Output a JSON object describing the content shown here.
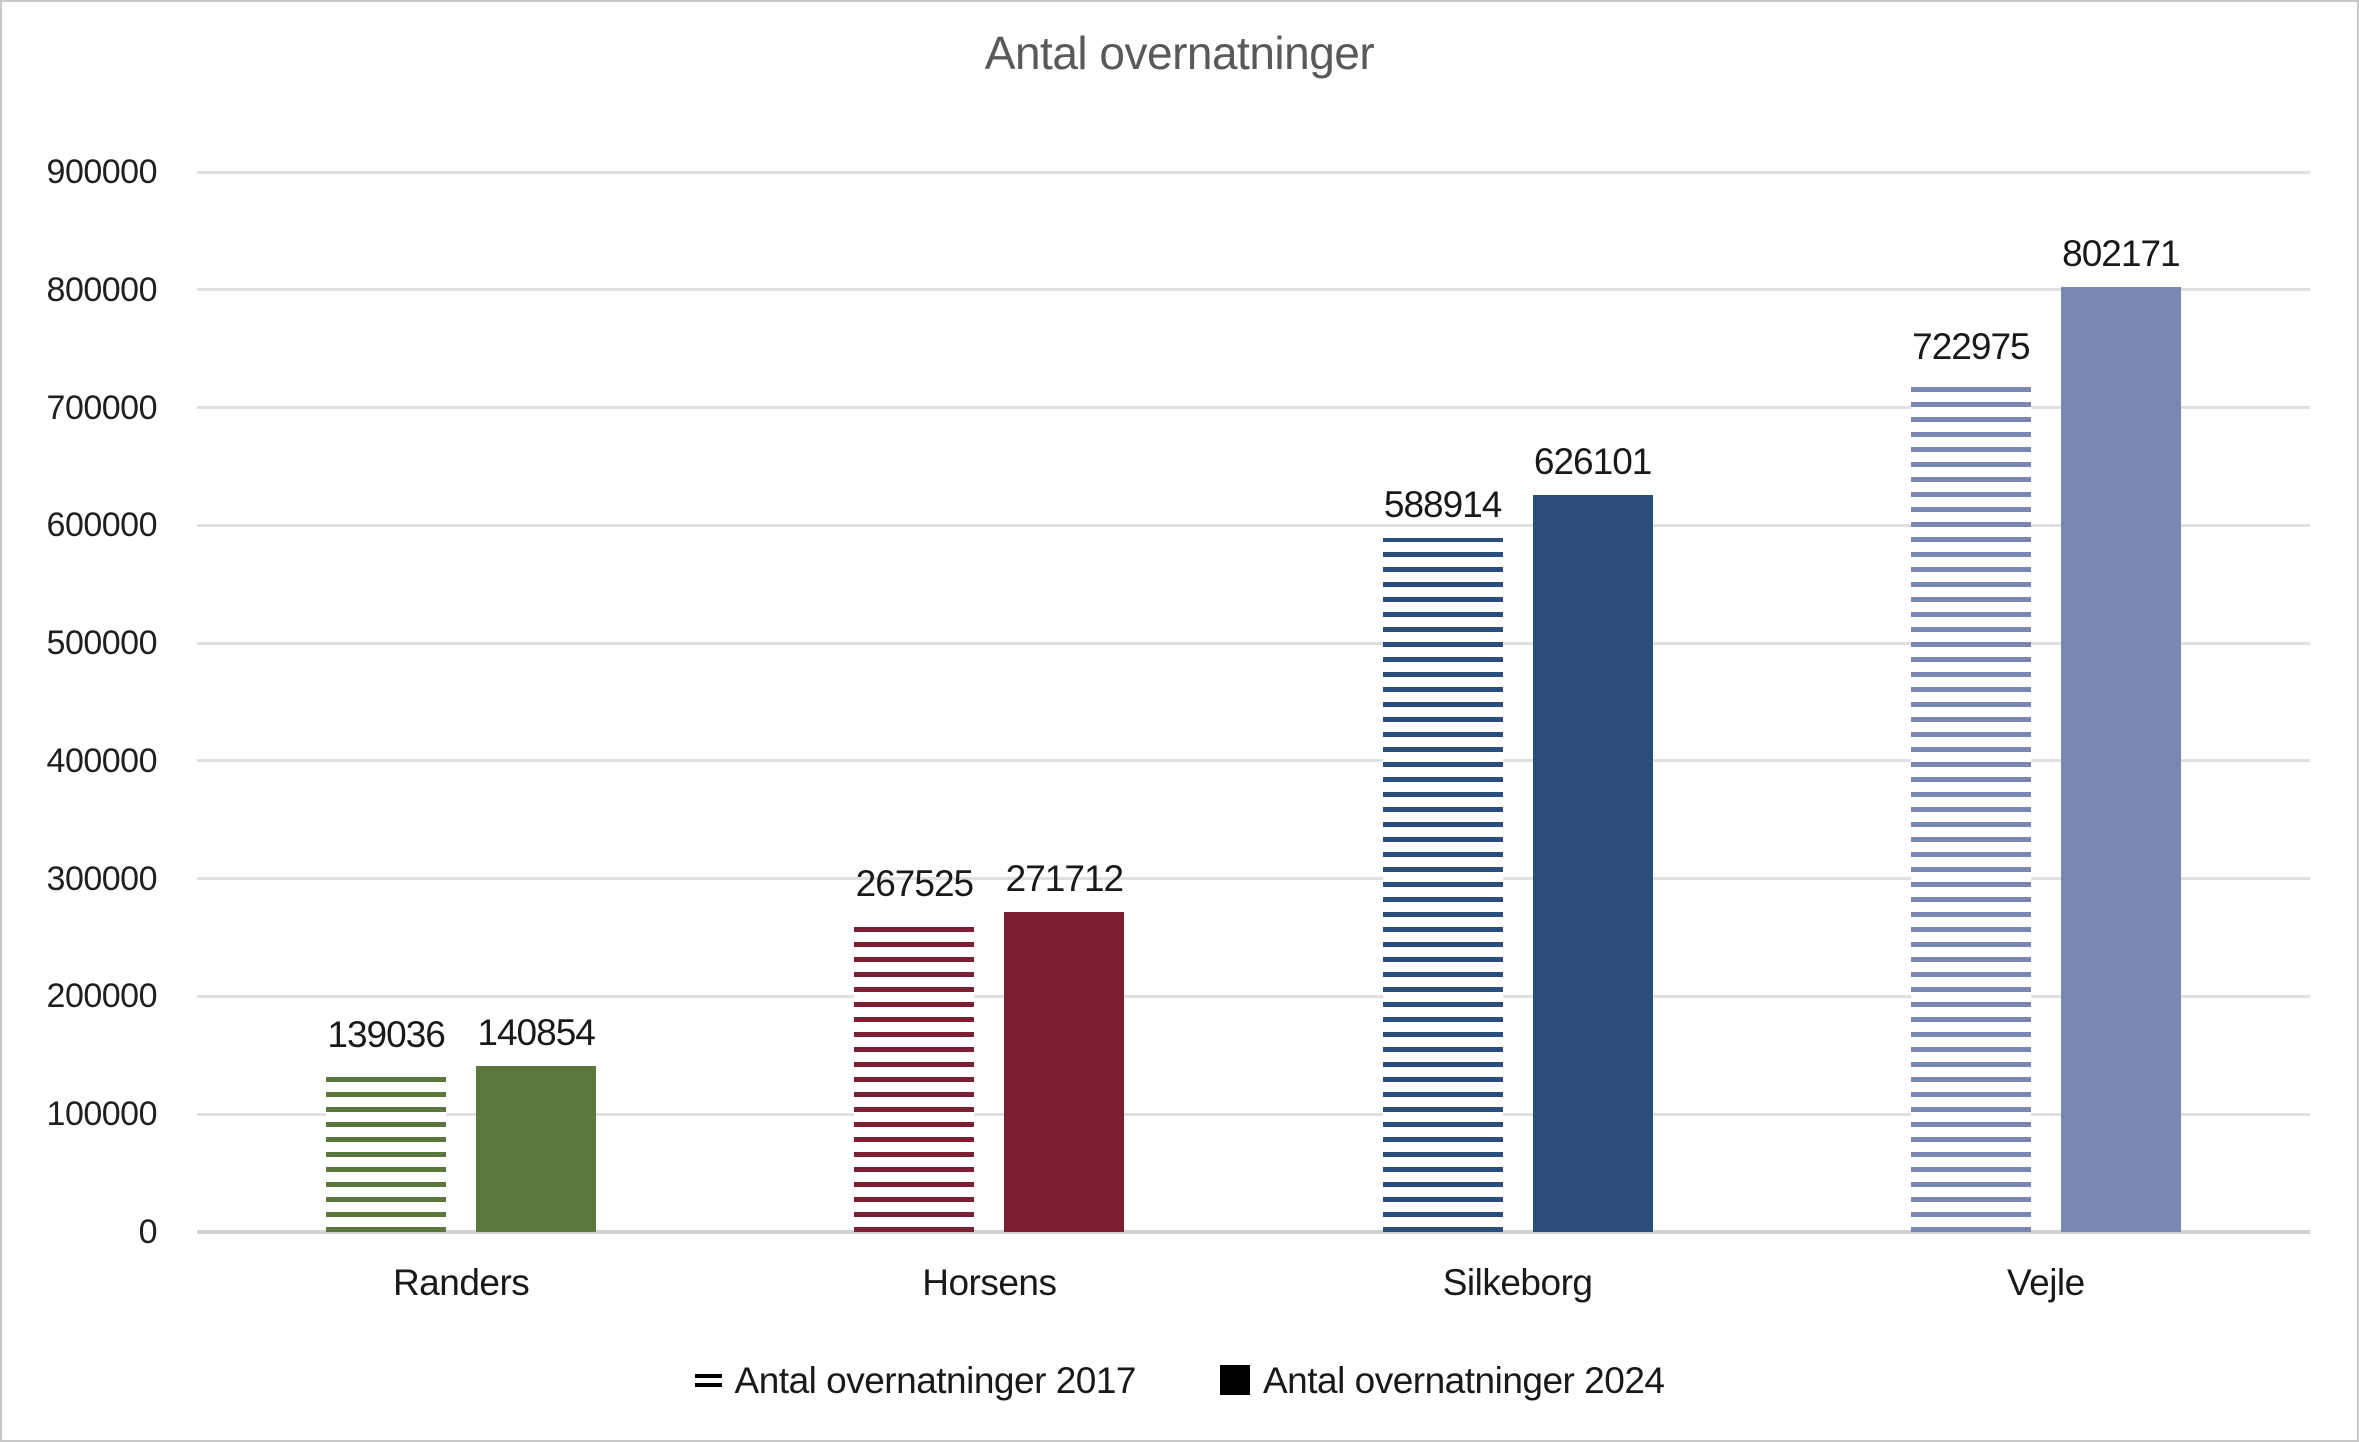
{
  "chart_data": {
    "type": "bar",
    "title": "Antal overnatninger",
    "categories": [
      "Randers",
      "Horsens",
      "Silkeborg",
      "Vejle"
    ],
    "series": [
      {
        "name": "Antal overnatninger 2017",
        "pattern": "horizontal-stripes",
        "values": [
          139036,
          267525,
          588914,
          722975
        ]
      },
      {
        "name": "Antal overnatninger 2024",
        "pattern": "solid",
        "values": [
          140854,
          271712,
          626101,
          802171
        ]
      }
    ],
    "category_colors": [
      "#5b773c",
      "#7d1f33",
      "#2a4d7e",
      "#7987b2"
    ],
    "ylim": [
      0,
      900000
    ],
    "ytick_step": 100000,
    "ytick_labels": [
      "0",
      "100000",
      "200000",
      "300000",
      "400000",
      "500000",
      "600000",
      "700000",
      "800000",
      "900000"
    ],
    "grid": "horizontal",
    "data_labels": true,
    "legend_position": "bottom"
  },
  "styles": {
    "title_color": "#595959",
    "text_color": "#191919",
    "gridline_color": "#e0e0e0",
    "axis_line_color": "#d2d2d2",
    "background": "#ffffff",
    "legend_marker_color": "#000000",
    "stripe_background": "#ffffff"
  }
}
